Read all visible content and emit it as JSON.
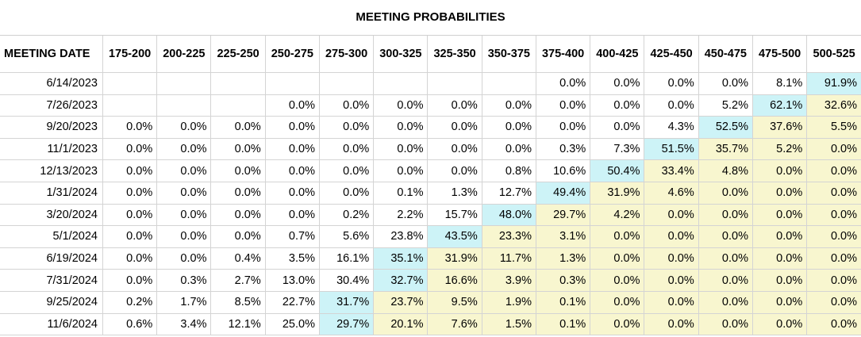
{
  "title": "MEETING PROBABILITIES",
  "chart_data": {
    "type": "table",
    "title": "MEETING PROBABILITIES",
    "first_col_header": "MEETING DATE",
    "columns": [
      "175-200",
      "200-225",
      "225-250",
      "250-275",
      "275-300",
      "300-325",
      "325-350",
      "350-375",
      "375-400",
      "400-425",
      "425-450",
      "450-475",
      "475-500",
      "500-525"
    ],
    "rows": [
      {
        "date": "6/14/2023",
        "values": [
          "",
          "",
          "",
          "",
          "",
          "",
          "",
          "",
          "0.0%",
          "0.0%",
          "0.0%",
          "0.0%",
          "8.1%",
          "91.9%"
        ]
      },
      {
        "date": "7/26/2023",
        "values": [
          "",
          "",
          "",
          "0.0%",
          "0.0%",
          "0.0%",
          "0.0%",
          "0.0%",
          "0.0%",
          "0.0%",
          "0.0%",
          "5.2%",
          "62.1%",
          "32.6%"
        ]
      },
      {
        "date": "9/20/2023",
        "values": [
          "0.0%",
          "0.0%",
          "0.0%",
          "0.0%",
          "0.0%",
          "0.0%",
          "0.0%",
          "0.0%",
          "0.0%",
          "0.0%",
          "4.3%",
          "52.5%",
          "37.6%",
          "5.5%"
        ]
      },
      {
        "date": "11/1/2023",
        "values": [
          "0.0%",
          "0.0%",
          "0.0%",
          "0.0%",
          "0.0%",
          "0.0%",
          "0.0%",
          "0.0%",
          "0.3%",
          "7.3%",
          "51.5%",
          "35.7%",
          "5.2%",
          "0.0%"
        ]
      },
      {
        "date": "12/13/2023",
        "values": [
          "0.0%",
          "0.0%",
          "0.0%",
          "0.0%",
          "0.0%",
          "0.0%",
          "0.0%",
          "0.8%",
          "10.6%",
          "50.4%",
          "33.4%",
          "4.8%",
          "0.0%",
          "0.0%"
        ]
      },
      {
        "date": "1/31/2024",
        "values": [
          "0.0%",
          "0.0%",
          "0.0%",
          "0.0%",
          "0.0%",
          "0.1%",
          "1.3%",
          "12.7%",
          "49.4%",
          "31.9%",
          "4.6%",
          "0.0%",
          "0.0%",
          "0.0%"
        ]
      },
      {
        "date": "3/20/2024",
        "values": [
          "0.0%",
          "0.0%",
          "0.0%",
          "0.0%",
          "0.2%",
          "2.2%",
          "15.7%",
          "48.0%",
          "29.7%",
          "4.2%",
          "0.0%",
          "0.0%",
          "0.0%",
          "0.0%"
        ]
      },
      {
        "date": "5/1/2024",
        "values": [
          "0.0%",
          "0.0%",
          "0.0%",
          "0.7%",
          "5.6%",
          "23.8%",
          "43.5%",
          "23.3%",
          "3.1%",
          "0.0%",
          "0.0%",
          "0.0%",
          "0.0%",
          "0.0%"
        ]
      },
      {
        "date": "6/19/2024",
        "values": [
          "0.0%",
          "0.0%",
          "0.4%",
          "3.5%",
          "16.1%",
          "35.1%",
          "31.9%",
          "11.7%",
          "1.3%",
          "0.0%",
          "0.0%",
          "0.0%",
          "0.0%",
          "0.0%"
        ]
      },
      {
        "date": "7/31/2024",
        "values": [
          "0.0%",
          "0.3%",
          "2.7%",
          "13.0%",
          "30.4%",
          "32.7%",
          "16.6%",
          "3.9%",
          "0.3%",
          "0.0%",
          "0.0%",
          "0.0%",
          "0.0%",
          "0.0%"
        ]
      },
      {
        "date": "9/25/2024",
        "values": [
          "0.2%",
          "1.7%",
          "8.5%",
          "22.7%",
          "31.7%",
          "23.7%",
          "9.5%",
          "1.9%",
          "0.1%",
          "0.0%",
          "0.0%",
          "0.0%",
          "0.0%",
          "0.0%"
        ]
      },
      {
        "date": "11/6/2024",
        "values": [
          "0.6%",
          "3.4%",
          "12.1%",
          "25.0%",
          "29.7%",
          "20.1%",
          "7.6%",
          "1.5%",
          "0.1%",
          "0.0%",
          "0.0%",
          "0.0%",
          "0.0%",
          "0.0%"
        ]
      }
    ],
    "max_index_per_row": [
      13,
      12,
      11,
      10,
      9,
      8,
      7,
      6,
      5,
      5,
      4,
      4
    ],
    "colors": {
      "highlight_max": "#cdf3f7",
      "above_max": "#f8f6cf",
      "grid": "#d4d4d4"
    }
  }
}
